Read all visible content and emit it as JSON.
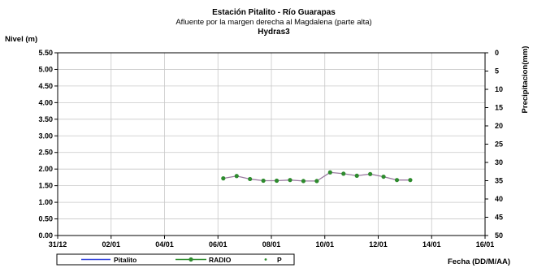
{
  "chart_data": {
    "type": "line",
    "title_lines": [
      "Estación Pitalito - Río Guarapas",
      "Afluente por la margen derecha al Magdalena (parte alta)",
      "Hydras3"
    ],
    "ylabel": "Nivel (m)",
    "y2label": "Precipitacion(mm)",
    "xlabel": "Fecha (DD/M/AA)",
    "ylim": [
      0,
      5.5
    ],
    "y2lim": [
      0,
      50
    ],
    "y2_reversed": true,
    "yticks": [
      "0.00",
      "0.50",
      "1.00",
      "1.50",
      "2.00",
      "2.50",
      "3.00",
      "3.50",
      "4.00",
      "4.50",
      "5.00",
      "5.50"
    ],
    "y2ticks": [
      "0",
      "5",
      "10",
      "15",
      "20",
      "25",
      "30",
      "35",
      "40",
      "45",
      "50"
    ],
    "xticks": [
      "31/12",
      "02/01",
      "04/01",
      "06/01",
      "08/01",
      "10/01",
      "12/01",
      "14/01",
      "16/01"
    ],
    "grid": true,
    "legend_placement": "bottom",
    "series": [
      {
        "name": "Pitalito",
        "color": "#3344dd",
        "marker": "none",
        "x": [],
        "values": []
      },
      {
        "name": "RADIO",
        "color": "#2e8b2e",
        "line_color": "#9a7aa0",
        "marker": "circle",
        "x": [
          6.2,
          6.7,
          7.2,
          7.7,
          8.2,
          8.7,
          9.2,
          9.7,
          10.2,
          10.7,
          11.2,
          11.7,
          12.2,
          12.7,
          13.2
        ],
        "values": [
          1.72,
          1.79,
          1.7,
          1.65,
          1.65,
          1.67,
          1.64,
          1.64,
          1.9,
          1.86,
          1.8,
          1.85,
          1.77,
          1.67,
          1.67
        ]
      },
      {
        "name": "P",
        "color": "#2e8b2e",
        "marker": "dot",
        "x": [],
        "values": []
      }
    ]
  }
}
